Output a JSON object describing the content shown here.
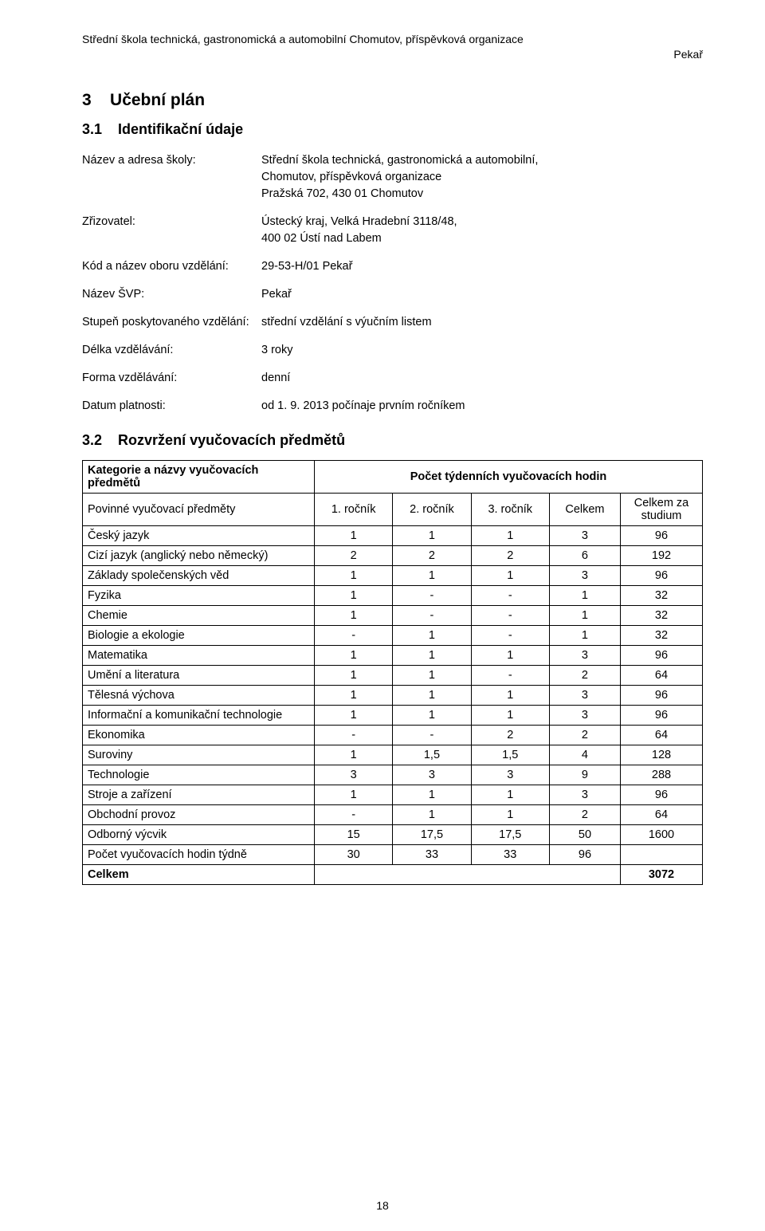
{
  "header": {
    "left": "Střední škola technická, gastronomická a automobilní Chomutov, příspěvková organizace",
    "right": "Pekař"
  },
  "section3": {
    "number": "3",
    "title": "Učební plán"
  },
  "section31": {
    "number": "3.1",
    "title": "Identifikační údaje"
  },
  "id": {
    "name_label": "Název a adresa školy:",
    "name_value_l1": "Střední škola technická, gastronomická a automobilní,",
    "name_value_l2": "Chomutov, příspěvková organizace",
    "name_value_l3": "Pražská 702, 430 01 Chomutov",
    "founder_label": "Zřizovatel:",
    "founder_value_l1": "Ústecký kraj, Velká Hradební 3118/48,",
    "founder_value_l2": "400 02 Ústí nad Labem",
    "code_label": "Kód a název oboru vzdělání:",
    "code_value": "29-53-H/01 Pekař",
    "svp_label": "Název ŠVP:",
    "svp_value": "Pekař",
    "level_label": "Stupeň poskytovaného vzdělání:",
    "level_value": "střední vzdělání s výučním listem",
    "length_label": "Délka vzdělávání:",
    "length_value": "3 roky",
    "form_label": "Forma vzdělávání:",
    "form_value": "denní",
    "date_label": "Datum platnosti:",
    "date_value": "od 1. 9. 2013 počínaje prvním ročníkem"
  },
  "section32": {
    "number": "3.2",
    "title": "Rozvržení vyučovacích předmětů"
  },
  "table": {
    "header_cat": "Kategorie a názvy vyučovacích předmětů",
    "header_span": "Počet týdenních vyučovacích hodin",
    "row1_label": "Povinné vyučovací předměty",
    "col1": "1. ročník",
    "col2": "2. ročník",
    "col3": "3. ročník",
    "col4": "Celkem",
    "col5": "Celkem za studium",
    "rows": [
      {
        "name": "Český jazyk",
        "v": [
          "1",
          "1",
          "1",
          "3",
          "96"
        ]
      },
      {
        "name": "Cizí jazyk (anglický nebo německý)",
        "v": [
          "2",
          "2",
          "2",
          "6",
          "192"
        ]
      },
      {
        "name": "Základy společenských věd",
        "v": [
          "1",
          "1",
          "1",
          "3",
          "96"
        ]
      },
      {
        "name": "Fyzika",
        "v": [
          "1",
          "-",
          "-",
          "1",
          "32"
        ]
      },
      {
        "name": "Chemie",
        "v": [
          "1",
          "-",
          "-",
          "1",
          "32"
        ]
      },
      {
        "name": "Biologie a ekologie",
        "v": [
          "-",
          "1",
          "-",
          "1",
          "32"
        ]
      },
      {
        "name": "Matematika",
        "v": [
          "1",
          "1",
          "1",
          "3",
          "96"
        ]
      },
      {
        "name": "Umění a literatura",
        "v": [
          "1",
          "1",
          "-",
          "2",
          "64"
        ]
      },
      {
        "name": "Tělesná výchova",
        "v": [
          "1",
          "1",
          "1",
          "3",
          "96"
        ]
      },
      {
        "name": "Informační a komunikační technologie",
        "v": [
          "1",
          "1",
          "1",
          "3",
          "96"
        ]
      },
      {
        "name": "Ekonomika",
        "v": [
          "-",
          "-",
          "2",
          "2",
          "64"
        ]
      },
      {
        "name": "Suroviny",
        "v": [
          "1",
          "1,5",
          "1,5",
          "4",
          "128"
        ]
      },
      {
        "name": "Technologie",
        "v": [
          "3",
          "3",
          "3",
          "9",
          "288"
        ]
      },
      {
        "name": "Stroje a zařízení",
        "v": [
          "1",
          "1",
          "1",
          "3",
          "96"
        ]
      },
      {
        "name": "Obchodní provoz",
        "v": [
          "-",
          "1",
          "1",
          "2",
          "64"
        ]
      },
      {
        "name": "Odborný výcvik",
        "v": [
          "15",
          "17,5",
          "17,5",
          "50",
          "1600"
        ]
      }
    ],
    "sum_week_label": "Počet vyučovacích hodin týdně",
    "sum_week": [
      "30",
      "33",
      "33",
      "96",
      ""
    ],
    "total_label": "Celkem",
    "total_value": "3072"
  },
  "footer": {
    "page": "18"
  }
}
